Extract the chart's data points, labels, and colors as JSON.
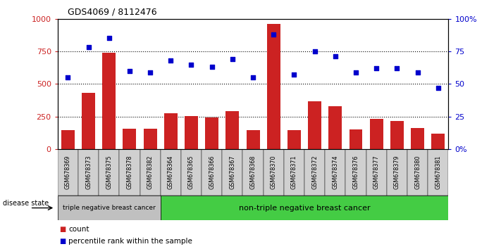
{
  "title": "GDS4069 / 8112476",
  "samples": [
    "GSM678369",
    "GSM678373",
    "GSM678375",
    "GSM678378",
    "GSM678382",
    "GSM678364",
    "GSM678365",
    "GSM678366",
    "GSM678367",
    "GSM678368",
    "GSM678370",
    "GSM678371",
    "GSM678372",
    "GSM678374",
    "GSM678376",
    "GSM678377",
    "GSM678379",
    "GSM678380",
    "GSM678381"
  ],
  "counts": [
    150,
    430,
    740,
    160,
    160,
    275,
    255,
    245,
    295,
    145,
    960,
    145,
    370,
    330,
    155,
    235,
    215,
    165,
    120
  ],
  "percentiles": [
    55,
    78,
    85,
    60,
    59,
    68,
    65,
    63,
    69,
    55,
    88,
    57,
    75,
    71,
    59,
    62,
    62,
    59,
    47
  ],
  "bar_color": "#cc2222",
  "scatter_color": "#0000cc",
  "ylim_left": [
    0,
    1000
  ],
  "ylim_right": [
    0,
    100
  ],
  "yticks_left": [
    0,
    250,
    500,
    750,
    1000
  ],
  "yticks_right": [
    0,
    25,
    50,
    75,
    100
  ],
  "ylabel_left_ticks": [
    "0",
    "250",
    "500",
    "750",
    "1000"
  ],
  "ylabel_right_ticks": [
    "0%",
    "25",
    "50",
    "75",
    "100%"
  ],
  "group1_label": "triple negative breast cancer",
  "group2_label": "non-triple negative breast cancer",
  "group1_count": 5,
  "group2_count": 14,
  "disease_state_label": "disease state",
  "legend_count": "count",
  "legend_percentile": "percentile rank within the sample",
  "background_color": "#ffffff",
  "plot_bg_color": "#ffffff",
  "dotted_lines": [
    250,
    500,
    750
  ],
  "tick_bg": "#d0d0d0",
  "group1_bg": "#c0c0c0",
  "group2_bg": "#44cc44",
  "group2_bg_dark": "#33aa33"
}
